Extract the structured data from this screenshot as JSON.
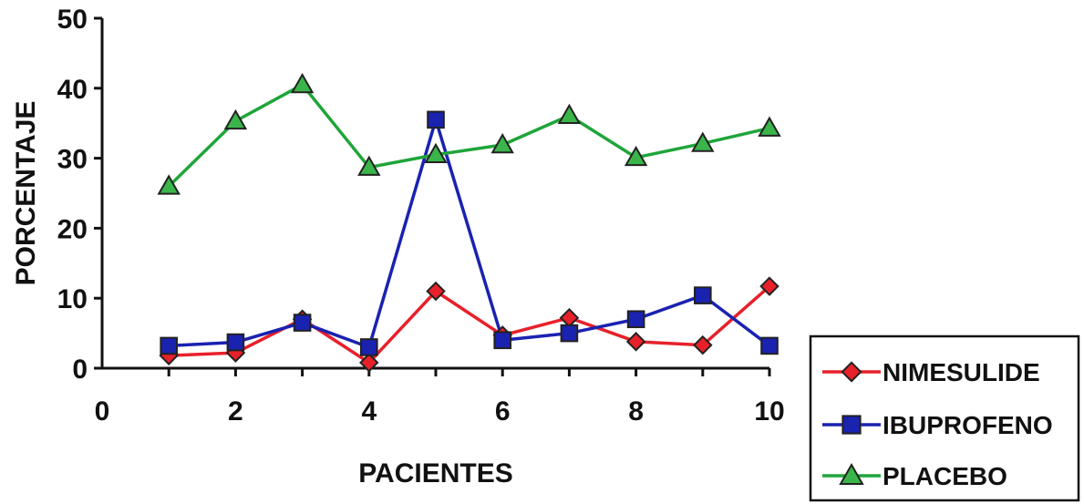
{
  "chart_data": {
    "type": "line",
    "title": "",
    "xlabel": "PACIENTES",
    "ylabel": "PORCENTAJE",
    "xlim": [
      0,
      10
    ],
    "ylim": [
      0,
      50
    ],
    "xticks": [
      0,
      2,
      4,
      6,
      8,
      10
    ],
    "yticks": [
      0,
      10,
      20,
      30,
      40,
      50
    ],
    "grid": false,
    "legend_position": "bottom-right",
    "x": [
      1,
      2,
      3,
      4,
      5,
      6,
      7,
      8,
      9,
      10
    ],
    "series": [
      {
        "name": "NIMESULIDE",
        "color": "#e8202a",
        "marker": "diamond",
        "marker_color": "#e8202a",
        "values": [
          1.8,
          2.2,
          7.0,
          0.8,
          11.0,
          4.7,
          7.2,
          3.8,
          3.3,
          11.7
        ]
      },
      {
        "name": "IBUPROFENO",
        "color": "#1a22b0",
        "marker": "square",
        "marker_color": "#1a22b0",
        "values": [
          3.2,
          3.7,
          6.5,
          3.0,
          35.5,
          4.0,
          5.0,
          7.0,
          10.4,
          3.2
        ]
      },
      {
        "name": "PLACEBO",
        "color": "#1fa53a",
        "marker": "triangle",
        "marker_color": "#3ab54a",
        "values": [
          26.0,
          35.3,
          40.5,
          28.7,
          30.5,
          31.9,
          36.1,
          30.1,
          32.1,
          34.3
        ]
      }
    ]
  }
}
